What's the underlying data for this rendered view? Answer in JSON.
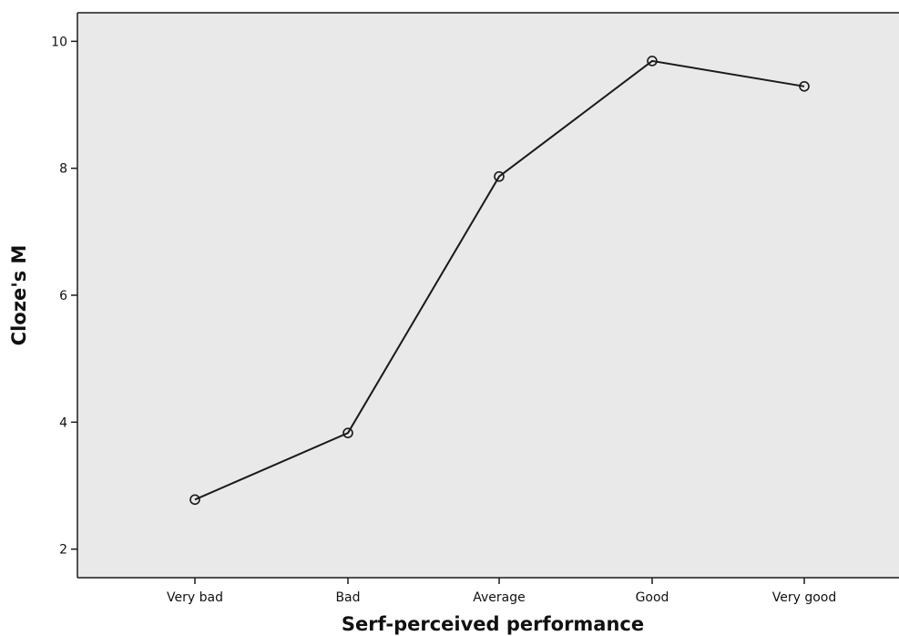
{
  "chart_data": {
    "type": "line",
    "title": "",
    "xlabel": "Serf-perceived performance",
    "ylabel": "Cloze's M",
    "categories": [
      "Very bad",
      "Bad",
      "Average",
      "Good",
      "Very good"
    ],
    "series": [
      {
        "values": [
          2.78,
          3.83,
          7.87,
          9.69,
          9.29
        ]
      }
    ],
    "ylim": [
      1.55,
      10.45
    ],
    "yticks": [
      2,
      4,
      6,
      8,
      10
    ],
    "grid": false,
    "legend": "none",
    "colors": {
      "plot_background": "#e9e9e9",
      "line": "#1a1a1a",
      "marker_stroke": "#1a1a1a",
      "axis": "#1a1a1a"
    }
  }
}
